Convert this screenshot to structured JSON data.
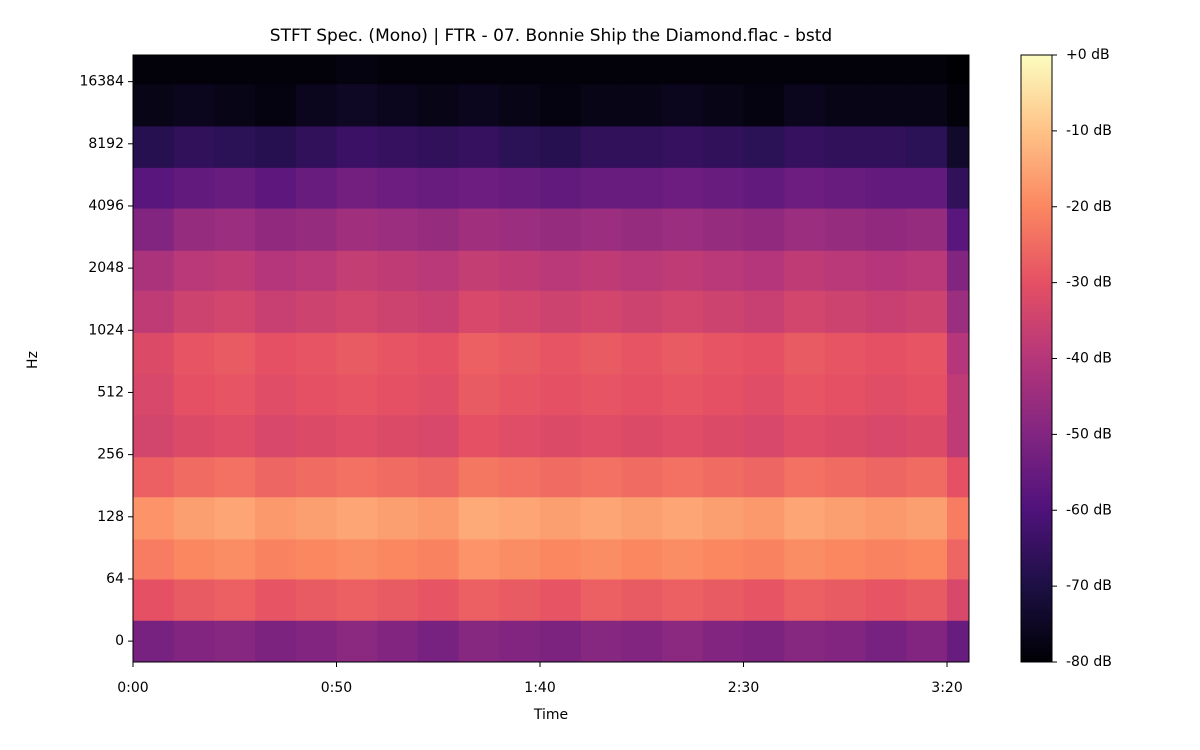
{
  "chart_data": {
    "type": "spectrogram",
    "title": "STFT Spec. (Mono) | FTR - 07. Bonnie Ship the Diamond.flac - bstd",
    "x_label": "Time",
    "y_label": "Hz",
    "xlim": [
      0,
      205.4
    ],
    "xticks": [
      {
        "value": 0,
        "label": "0:00"
      },
      {
        "value": 50,
        "label": "0:50"
      },
      {
        "value": 100,
        "label": "1:40"
      },
      {
        "value": 150,
        "label": "2:30"
      },
      {
        "value": 200,
        "label": "3:20"
      }
    ],
    "ylim": [
      -21.5,
      22050
    ],
    "yscale": "symlog",
    "linthresh": 64,
    "yticks": [
      0,
      64,
      128,
      256,
      512,
      1024,
      2048,
      4096,
      8192,
      16384
    ],
    "colormap": "magma",
    "clim": [
      -80,
      0
    ],
    "colorbar_ticks": [
      {
        "value": 0,
        "label": "+0 dB"
      },
      {
        "value": -10,
        "label": "-10 dB"
      },
      {
        "value": -20,
        "label": "-20 dB"
      },
      {
        "value": -30,
        "label": "-30 dB"
      },
      {
        "value": -40,
        "label": "-40 dB"
      },
      {
        "value": -50,
        "label": "-50 dB"
      },
      {
        "value": -60,
        "label": "-60 dB"
      },
      {
        "value": -70,
        "label": "-70 dB"
      },
      {
        "value": -80,
        "label": "-80 dB"
      }
    ],
    "time_bins": [
      0,
      10,
      20,
      30,
      40,
      50,
      60,
      70,
      80,
      90,
      100,
      110,
      120,
      130,
      140,
      150,
      160,
      170,
      180,
      190,
      200,
      205.4
    ],
    "freq_bins": [
      -21.5,
      21.5,
      64,
      100,
      160,
      250,
      400,
      630,
      1000,
      1600,
      2500,
      4000,
      6300,
      10000,
      16000,
      22050
    ],
    "values": [
      [
        -52,
        -50,
        -49,
        -51,
        -50,
        -48,
        -50,
        -52,
        -49,
        -50,
        -51,
        -49,
        -50,
        -48,
        -50,
        -51,
        -49,
        -50,
        -52,
        -50,
        -55
      ],
      [
        -30,
        -28,
        -27,
        -29,
        -28,
        -27,
        -28,
        -29,
        -27,
        -28,
        -29,
        -27,
        -28,
        -27,
        -28,
        -29,
        -27,
        -28,
        -29,
        -28,
        -33
      ],
      [
        -22,
        -20,
        -19,
        -21,
        -20,
        -19,
        -20,
        -21,
        -18,
        -19,
        -20,
        -19,
        -20,
        -19,
        -20,
        -21,
        -19,
        -20,
        -21,
        -20,
        -26
      ],
      [
        -18,
        -16,
        -15,
        -17,
        -16,
        -15,
        -16,
        -17,
        -14,
        -15,
        -16,
        -15,
        -16,
        -15,
        -16,
        -17,
        -15,
        -16,
        -17,
        -16,
        -22
      ],
      [
        -27,
        -25,
        -24,
        -26,
        -25,
        -24,
        -25,
        -26,
        -23,
        -24,
        -25,
        -24,
        -25,
        -24,
        -25,
        -26,
        -24,
        -25,
        -26,
        -25,
        -30
      ],
      [
        -34,
        -32,
        -31,
        -33,
        -32,
        -31,
        -32,
        -33,
        -30,
        -31,
        -32,
        -31,
        -32,
        -31,
        -32,
        -33,
        -31,
        -32,
        -33,
        -32,
        -38
      ],
      [
        -33,
        -30,
        -29,
        -31,
        -30,
        -29,
        -30,
        -31,
        -28,
        -29,
        -30,
        -29,
        -30,
        -29,
        -30,
        -31,
        -29,
        -30,
        -31,
        -30,
        -38
      ],
      [
        -32,
        -29,
        -28,
        -30,
        -29,
        -28,
        -29,
        -30,
        -27,
        -28,
        -29,
        -28,
        -29,
        -28,
        -29,
        -30,
        -28,
        -29,
        -30,
        -29,
        -40
      ],
      [
        -38,
        -35,
        -34,
        -36,
        -35,
        -34,
        -35,
        -36,
        -33,
        -34,
        -35,
        -34,
        -35,
        -34,
        -35,
        -36,
        -34,
        -35,
        -36,
        -35,
        -45
      ],
      [
        -42,
        -39,
        -38,
        -40,
        -39,
        -37,
        -38,
        -39,
        -37,
        -38,
        -39,
        -38,
        -39,
        -38,
        -39,
        -40,
        -38,
        -39,
        -40,
        -39,
        -50
      ],
      [
        -50,
        -46,
        -45,
        -47,
        -46,
        -44,
        -45,
        -46,
        -44,
        -45,
        -46,
        -45,
        -46,
        -45,
        -46,
        -47,
        -45,
        -46,
        -47,
        -46,
        -58
      ],
      [
        -58,
        -56,
        -55,
        -57,
        -55,
        -53,
        -54,
        -55,
        -54,
        -55,
        -56,
        -55,
        -55,
        -54,
        -55,
        -56,
        -54,
        -55,
        -56,
        -56,
        -66
      ],
      [
        -68,
        -66,
        -67,
        -68,
        -66,
        -64,
        -65,
        -66,
        -65,
        -67,
        -68,
        -66,
        -66,
        -65,
        -66,
        -67,
        -65,
        -66,
        -66,
        -67,
        -74
      ],
      [
        -77,
        -76,
        -77,
        -78,
        -76,
        -75,
        -76,
        -77,
        -76,
        -77,
        -78,
        -77,
        -77,
        -76,
        -77,
        -78,
        -76,
        -77,
        -77,
        -77,
        -79
      ],
      [
        -79,
        -79,
        -79,
        -79,
        -79,
        -78,
        -79,
        -79,
        -79,
        -79,
        -79,
        -79,
        -79,
        -79,
        -79,
        -79,
        -79,
        -79,
        -79,
        -79,
        -80
      ]
    ]
  }
}
